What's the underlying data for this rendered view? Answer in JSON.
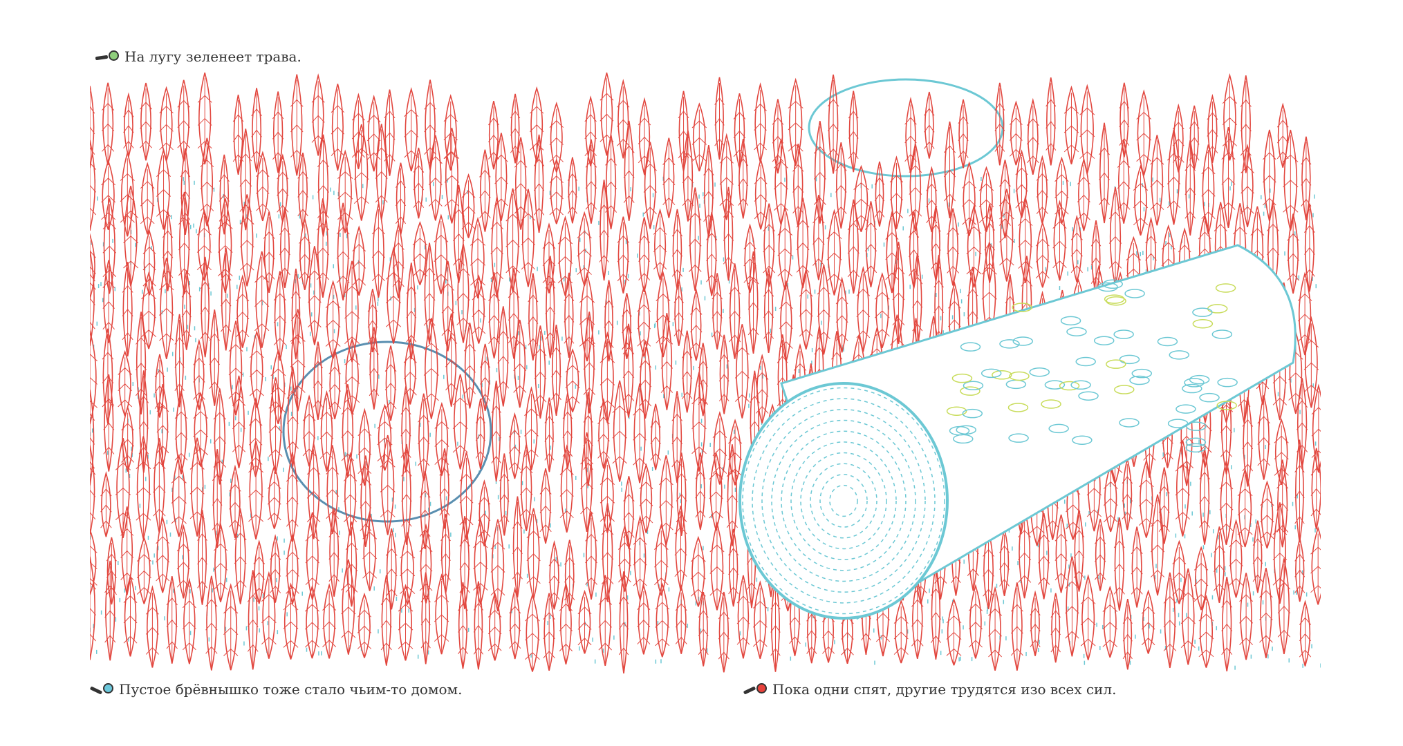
{
  "captions": [
    {
      "text": "На лугу зеленеет трава.",
      "icon": "magnifier-green-icon",
      "color": "#8fcf7c"
    },
    {
      "text": "Пустое брёвнышко тоже стало чьим-то домом.",
      "icon": "magnifier-blue-icon",
      "color": "#6cc8dc"
    },
    {
      "text": "Пока одни спят, другие трудятся изо всех сил.",
      "icon": "magnifier-red-icon",
      "color": "#e8423c"
    }
  ],
  "colors": {
    "grass": "#e2473f",
    "hidden": "#6cc8d4",
    "highlight": "#c8dc5a"
  }
}
